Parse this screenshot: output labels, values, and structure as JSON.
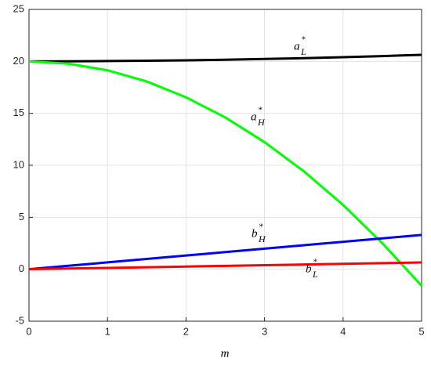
{
  "chart_data": {
    "type": "line",
    "x_label": "m",
    "x": [
      0,
      0.5,
      1,
      1.5,
      2,
      2.5,
      3,
      3.5,
      4,
      4.5,
      5
    ],
    "series": [
      {
        "label": {
          "base": "a",
          "sub": "L",
          "sup": "*"
        },
        "color": "#000000",
        "values": [
          20,
          20.01,
          20.03,
          20.06,
          20.1,
          20.16,
          20.23,
          20.31,
          20.4,
          20.51,
          20.63
        ]
      },
      {
        "label": {
          "base": "a",
          "sub": "H",
          "sup": "*"
        },
        "color": "#00ff00",
        "values": [
          20,
          19.78,
          19.14,
          18.06,
          16.54,
          14.6,
          12.22,
          9.42,
          6.18,
          2.5,
          -1.6
        ]
      },
      {
        "label": {
          "base": "b",
          "sub": "H",
          "sup": "*"
        },
        "color": "#0000ff",
        "values": [
          0,
          0.33,
          0.66,
          0.99,
          1.32,
          1.65,
          1.98,
          2.31,
          2.64,
          2.97,
          3.3
        ]
      },
      {
        "label": {
          "base": "b",
          "sub": "L",
          "sup": "*"
        },
        "color": "#ff0000",
        "values": [
          0,
          0.065,
          0.13,
          0.195,
          0.26,
          0.325,
          0.39,
          0.455,
          0.52,
          0.585,
          0.65
        ]
      }
    ],
    "xlim": [
      0,
      5
    ],
    "xticks": [
      0,
      1,
      2,
      3,
      4,
      5
    ],
    "ylim": [
      -5,
      25
    ],
    "yticks": [
      -5,
      0,
      5,
      10,
      15,
      20,
      25
    ],
    "grid": true
  }
}
